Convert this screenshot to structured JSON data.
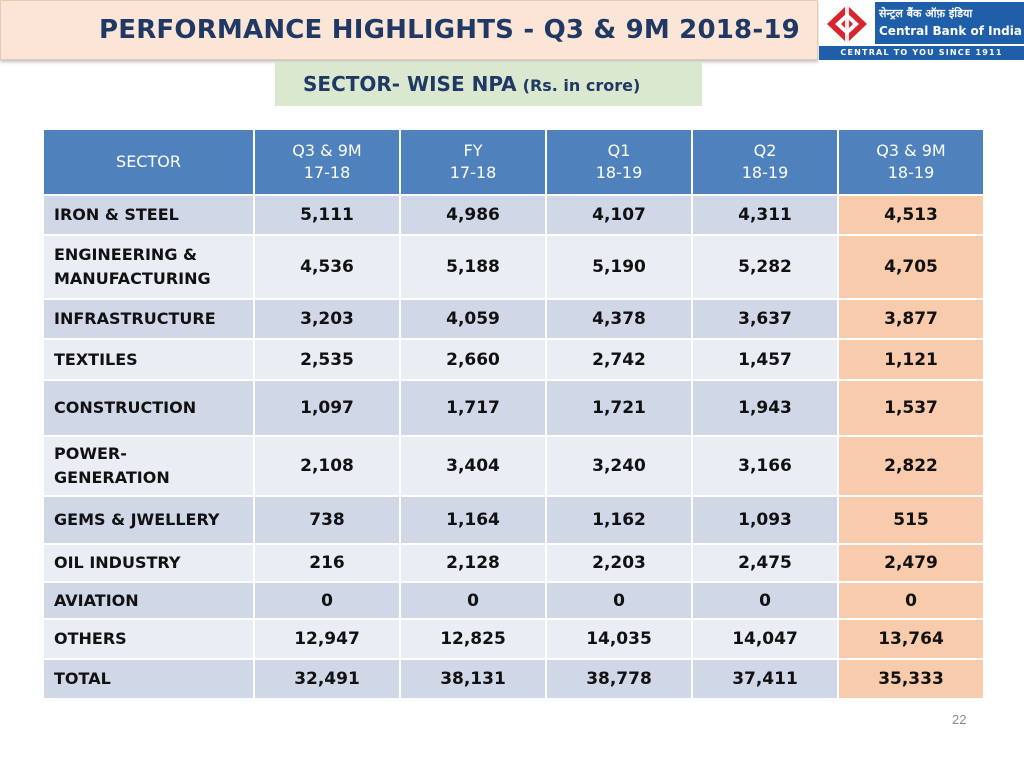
{
  "title": "PERFORMANCE HIGHLIGHTS - Q3 & 9M 2018-19",
  "logo": {
    "hindi_name": "सेन्ट्रल बैंक ऑफ़ इंडिया",
    "english_name": "Central Bank of India",
    "tagline": "CENTRAL TO YOU SINCE 1911"
  },
  "subtitle": {
    "main": "SECTOR- WISE NPA",
    "unit": "(Rs. in crore)"
  },
  "table": {
    "header_sector": "SECTOR",
    "columns": [
      {
        "line1": "Q3 & 9M",
        "line2": "17-18"
      },
      {
        "line1": "FY",
        "line2": "17-18"
      },
      {
        "line1": "Q1",
        "line2": "18-19"
      },
      {
        "line1": "Q2",
        "line2": "18-19"
      },
      {
        "line1": "Q3 & 9M",
        "line2": "18-19"
      }
    ],
    "rows": [
      {
        "sector_line1": "IRON & STEEL",
        "sector_line2": "",
        "values": [
          "5,111",
          "4,986",
          "4,107",
          "4,311",
          "4,513"
        ]
      },
      {
        "sector_line1": "ENGINEERING &",
        "sector_line2": "MANUFACTURING",
        "values": [
          "4,536",
          "5,188",
          "5,190",
          "5,282",
          "4,705"
        ]
      },
      {
        "sector_line1": "INFRASTRUCTURE",
        "sector_line2": "",
        "values": [
          "3,203",
          "4,059",
          "4,378",
          "3,637",
          "3,877"
        ]
      },
      {
        "sector_line1": "TEXTILES",
        "sector_line2": "",
        "values": [
          "2,535",
          "2,660",
          "2,742",
          "1,457",
          "1,121"
        ]
      },
      {
        "sector_line1": "CONSTRUCTION",
        "sector_line2": "",
        "values": [
          "1,097",
          "1,717",
          "1,721",
          "1,943",
          "1,537"
        ]
      },
      {
        "sector_line1": "POWER-",
        "sector_line2": "GENERATION",
        "values": [
          "2,108",
          "3,404",
          "3,240",
          "3,166",
          "2,822"
        ]
      },
      {
        "sector_line1": "GEMS & JWELLERY",
        "sector_line2": "",
        "values": [
          "738",
          "1,164",
          "1,162",
          "1,093",
          "515"
        ]
      },
      {
        "sector_line1": "OIL INDUSTRY",
        "sector_line2": "",
        "values": [
          "216",
          "2,128",
          "2,203",
          "2,475",
          "2,479"
        ]
      },
      {
        "sector_line1": "AVIATION",
        "sector_line2": "",
        "values": [
          "0",
          "0",
          "0",
          "0",
          "0"
        ]
      },
      {
        "sector_line1": "OTHERS",
        "sector_line2": "",
        "values": [
          "12,947",
          "12,825",
          "14,035",
          "14,047",
          "13,764"
        ]
      },
      {
        "sector_line1": "TOTAL",
        "sector_line2": "",
        "values": [
          "32,491",
          "38,131",
          "38,778",
          "37,411",
          "35,333"
        ]
      }
    ]
  },
  "page_number": "22",
  "colors": {
    "header_blue": "#4f81bd",
    "highlight_peach": "#f8cbad",
    "title_navy": "#1f3864",
    "title_bg": "#fbe5d6",
    "subtitle_bg": "#d9e8cf"
  }
}
